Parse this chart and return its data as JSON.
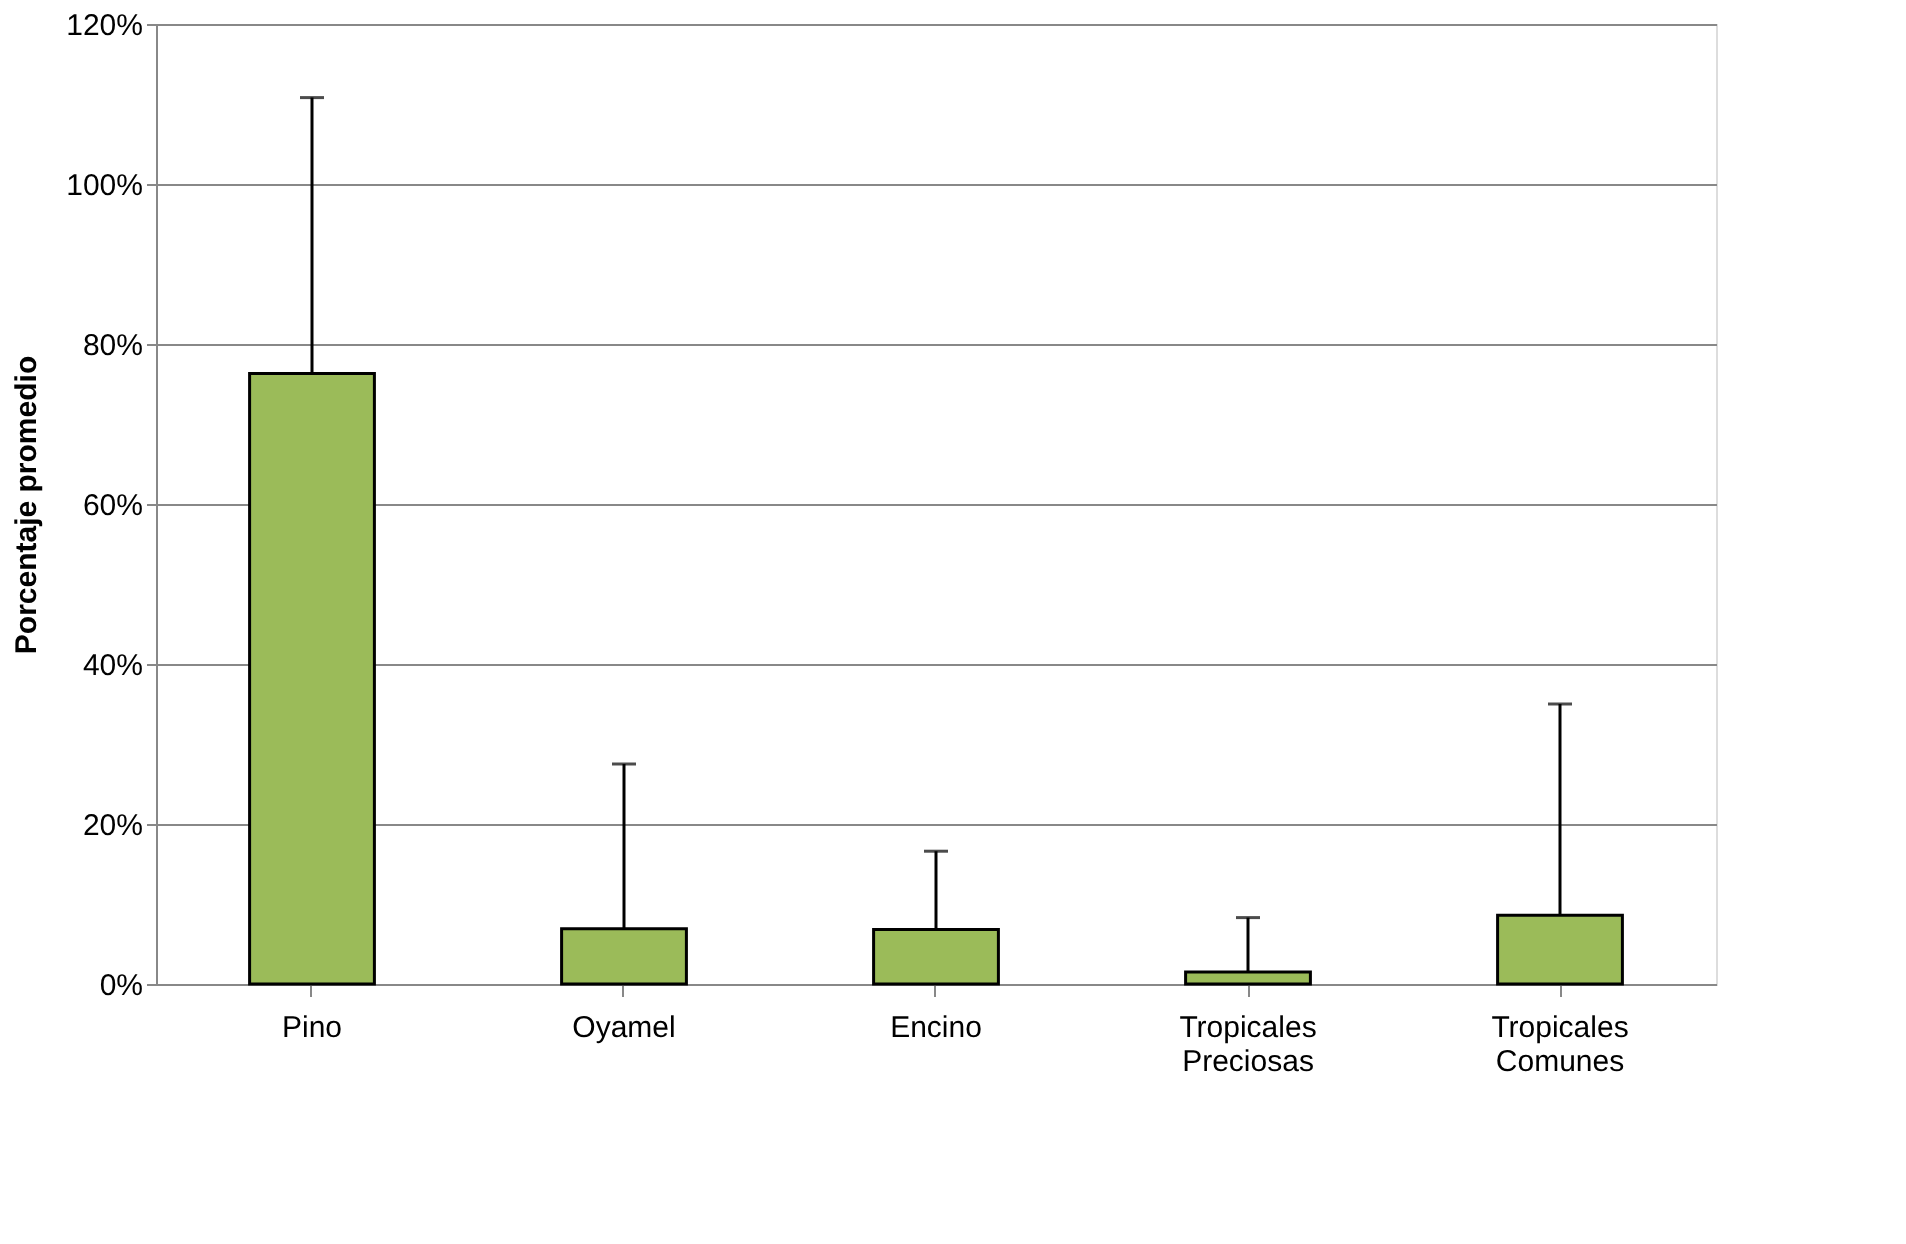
{
  "chart_data": {
    "type": "bar",
    "ylabel": "Porcentaje promedio",
    "categories": [
      "Pino",
      "Oyamel",
      "Encino",
      "Tropicales\nPreciosas",
      "Tropicales\nComunes"
    ],
    "values": [
      76.3,
      6.9,
      6.8,
      1.5,
      8.6
    ],
    "errors": [
      [
        76.3,
        110.8
      ],
      [
        6.9,
        27.5
      ],
      [
        6.8,
        16.6
      ],
      [
        1.5,
        8.3
      ],
      [
        8.6,
        35.0
      ]
    ],
    "color": "#9bbb59",
    "ylim": [
      0,
      120
    ],
    "yticks": [
      {
        "value": 0,
        "label": "0%"
      },
      {
        "value": 20,
        "label": "20%"
      },
      {
        "value": 40,
        "label": "40%"
      },
      {
        "value": 60,
        "label": "60%"
      },
      {
        "value": 80,
        "label": "80%"
      },
      {
        "value": 100,
        "label": "100%"
      },
      {
        "value": 120,
        "label": "120%"
      }
    ],
    "grid": "y"
  }
}
